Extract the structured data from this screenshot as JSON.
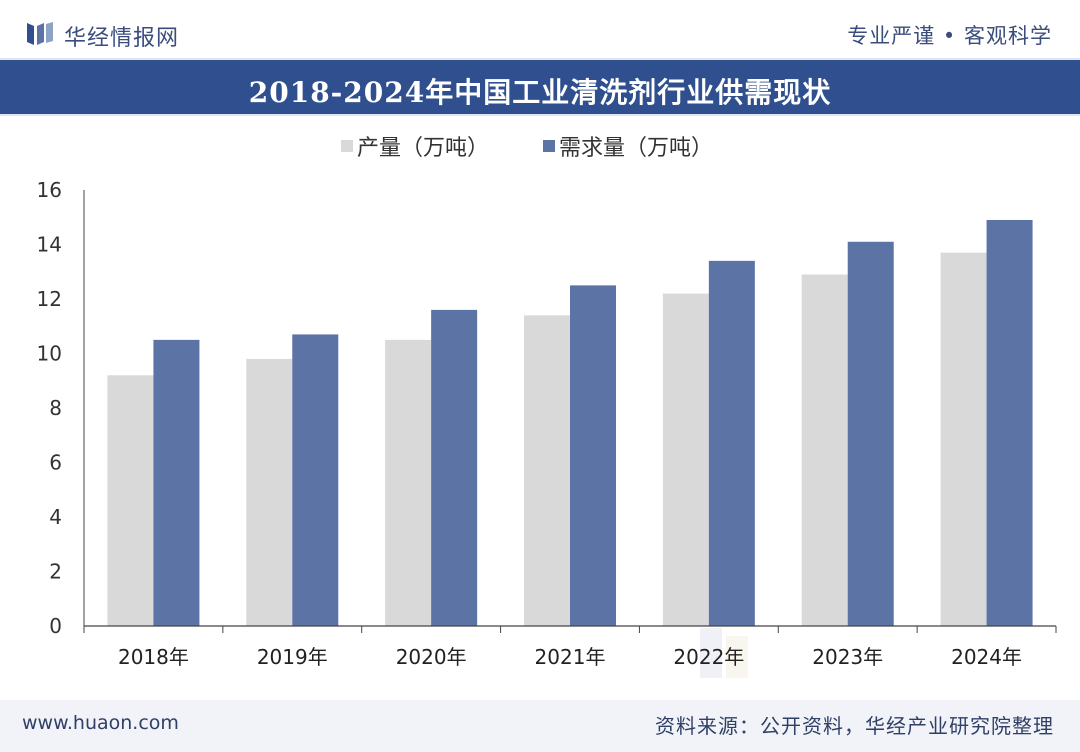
{
  "header": {
    "brand": "华经情报网",
    "slogan": "专业严谨 • 客观科学"
  },
  "chart_data": {
    "type": "bar",
    "title": "2018-2024年中国工业清洗剂行业供需现状",
    "categories": [
      "2018年",
      "2019年",
      "2020年",
      "2021年",
      "2022年",
      "2023年",
      "2024年"
    ],
    "series": [
      {
        "name": "产量（万吨）",
        "values": [
          9.2,
          9.8,
          10.5,
          11.4,
          12.2,
          12.9,
          13.7
        ],
        "color": "#d9d9d9"
      },
      {
        "name": "需求量（万吨）",
        "values": [
          10.5,
          10.7,
          11.6,
          12.5,
          13.4,
          14.1,
          14.9
        ],
        "color": "#5b73a5"
      }
    ],
    "ylim": [
      0,
      16
    ],
    "yticks": [
      0,
      2,
      4,
      6,
      8,
      10,
      12,
      14,
      16
    ],
    "xlabel": "",
    "ylabel": "",
    "legend": "top-center",
    "grid": false
  },
  "footer": {
    "url": "www.huaon.com",
    "source": "资料来源：公开资料，华经产业研究院整理"
  },
  "colors": {
    "title_band": "#2f4f8f",
    "brand_text": "#3a4d7c",
    "production": "#d9d9d9",
    "demand": "#5b73a5"
  }
}
